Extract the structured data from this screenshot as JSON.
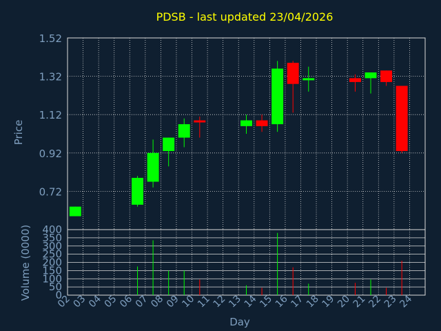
{
  "colors": {
    "background": "#0f1f30",
    "grid": "#dddddd",
    "axis_text": "#7f9fbf",
    "title": "#ffff00",
    "up": "#00ff00",
    "down": "#ff0000",
    "frame": "#dddddd"
  },
  "chart_data": {
    "type": "candlestick",
    "title": "PDSB - last updated 23/04/2026",
    "xlabel": "Day",
    "price_panel": {
      "ylabel": "Price",
      "ylim": [
        0.52,
        1.52
      ],
      "yticks": [
        "1.52",
        "1.32",
        "1.12",
        "0.92",
        "0.72"
      ],
      "ytick_values": [
        1.52,
        1.32,
        1.12,
        0.92,
        0.72
      ]
    },
    "volume_panel": {
      "ylabel": "Volume (0000)",
      "ylim": [
        0,
        400
      ],
      "yticks": [
        "400",
        "350",
        "300",
        "250",
        "200",
        "150",
        "100",
        "50",
        "0"
      ],
      "ytick_values": [
        400,
        350,
        300,
        250,
        200,
        150,
        100,
        50,
        0
      ]
    },
    "x_labels": [
      "02",
      "03",
      "04",
      "05",
      "06",
      "07",
      "08",
      "09",
      "10",
      "11",
      "12",
      "13",
      "14",
      "15",
      "16",
      "17",
      "18",
      "19",
      "20",
      "21",
      "22",
      "23",
      "24"
    ],
    "candles": [
      {
        "day": "02",
        "open": 0.59,
        "close": 0.64,
        "high": 0.64,
        "low": 0.59,
        "volume": 0
      },
      {
        "day": "06",
        "open": 0.65,
        "close": 0.79,
        "high": 0.8,
        "low": 0.64,
        "volume": 175
      },
      {
        "day": "07",
        "open": 0.77,
        "close": 0.92,
        "high": 0.99,
        "low": 0.74,
        "volume": 335
      },
      {
        "day": "08",
        "open": 0.93,
        "close": 1.0,
        "high": 1.0,
        "low": 0.85,
        "volume": 150
      },
      {
        "day": "09",
        "open": 1.0,
        "close": 1.07,
        "high": 1.1,
        "low": 0.95,
        "volume": 150
      },
      {
        "day": "10",
        "open": 1.09,
        "close": 1.08,
        "high": 1.11,
        "low": 1.0,
        "volume": 95
      },
      {
        "day": "13",
        "open": 1.06,
        "close": 1.09,
        "high": 1.12,
        "low": 1.02,
        "volume": 60
      },
      {
        "day": "14",
        "open": 1.09,
        "close": 1.06,
        "high": 1.12,
        "low": 1.03,
        "volume": 45
      },
      {
        "day": "15",
        "open": 1.07,
        "close": 1.36,
        "high": 1.4,
        "low": 1.03,
        "volume": 380
      },
      {
        "day": "16",
        "open": 1.39,
        "close": 1.28,
        "high": 1.4,
        "low": 1.13,
        "volume": 170
      },
      {
        "day": "17",
        "open": 1.3,
        "close": 1.31,
        "high": 1.37,
        "low": 1.24,
        "volume": 70
      },
      {
        "day": "20",
        "open": 1.31,
        "close": 1.29,
        "high": 1.33,
        "low": 1.24,
        "volume": 75
      },
      {
        "day": "21",
        "open": 1.31,
        "close": 1.34,
        "high": 1.34,
        "low": 1.23,
        "volume": 95
      },
      {
        "day": "22",
        "open": 1.35,
        "close": 1.29,
        "high": 1.35,
        "low": 1.27,
        "volume": 45
      },
      {
        "day": "23",
        "open": 1.27,
        "close": 0.93,
        "high": 1.27,
        "low": 0.92,
        "volume": 210
      }
    ]
  }
}
